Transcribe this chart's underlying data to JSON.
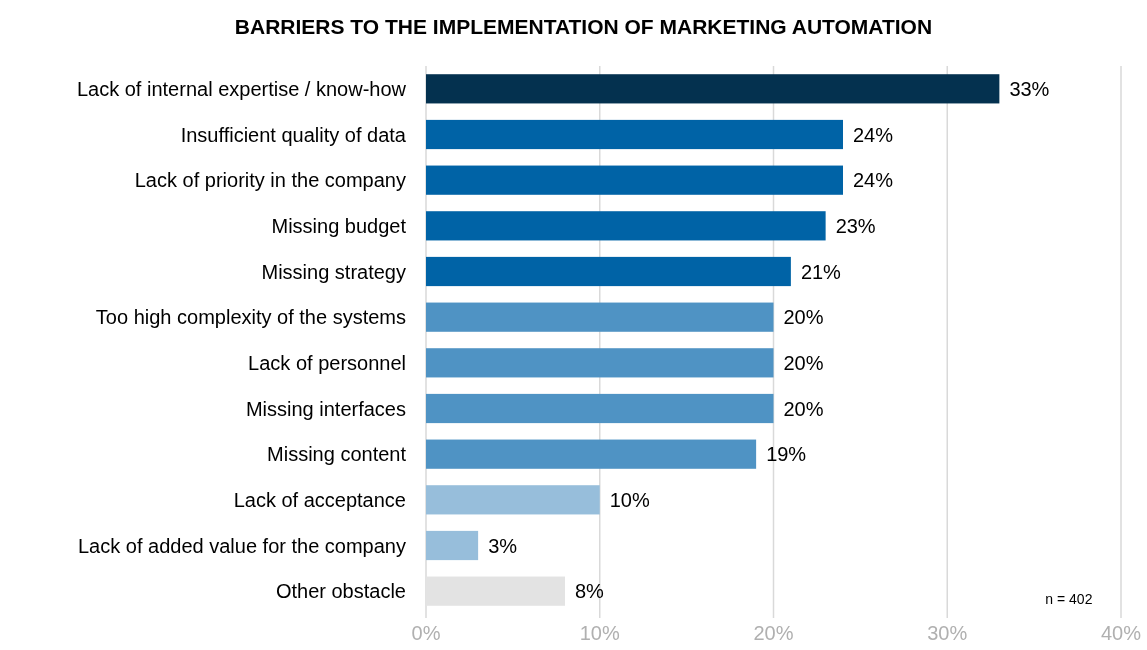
{
  "chart_data": {
    "type": "bar",
    "orientation": "horizontal",
    "title": "BARRIERS TO THE IMPLEMENTATION OF MARKETING AUTOMATION",
    "categories": [
      "Lack of internal expertise / know-how",
      "Insufficient quality of data",
      "Lack of priority in the company",
      "Missing budget",
      "Missing strategy",
      "Too high complexity of the systems",
      "Lack of personnel",
      "Missing interfaces",
      "Missing content",
      "Lack of acceptance",
      "Lack of added value for the company",
      "Other obstacle"
    ],
    "values": [
      33,
      24,
      24,
      23,
      21,
      20,
      20,
      20,
      19,
      10,
      3,
      8
    ],
    "value_labels": [
      "33%",
      "24%",
      "24%",
      "23%",
      "21%",
      "20%",
      "20%",
      "20%",
      "19%",
      "10%",
      "3%",
      "8%"
    ],
    "colors": [
      "#04314f",
      "#0063a6",
      "#0063a6",
      "#0063a6",
      "#0063a6",
      "#4f93c4",
      "#4f93c4",
      "#4f93c4",
      "#4f93c4",
      "#97bedb",
      "#97bedb",
      "#e3e3e3"
    ],
    "xlim": [
      0,
      40
    ],
    "xticks": [
      {
        "value": 0,
        "label": "0%"
      },
      {
        "value": 10,
        "label": "10%"
      },
      {
        "value": 20,
        "label": "20%"
      },
      {
        "value": 30,
        "label": "30%"
      },
      {
        "value": 40,
        "label": "40%"
      }
    ],
    "grid": "x",
    "annotations": [
      "n = 402"
    ]
  }
}
